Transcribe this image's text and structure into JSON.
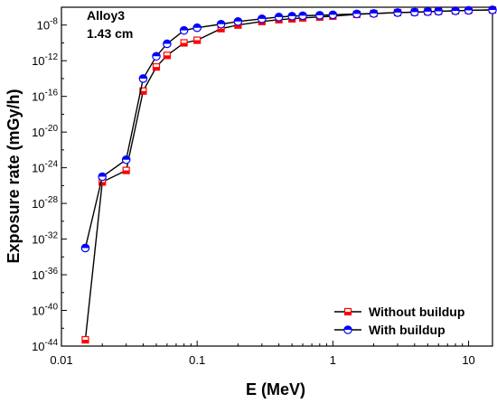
{
  "chart_data": {
    "type": "line",
    "xscale": "log",
    "yscale": "log",
    "xlabel": "E (MeV)",
    "ylabel": "Exposure rate (mGy/h)",
    "xlim": [
      0.01,
      15
    ],
    "ylim": [
      1e-44,
      1e-06
    ],
    "x_ticks": [
      {
        "value": 0.01,
        "label": "0.01"
      },
      {
        "value": 0.1,
        "label": "0.1"
      },
      {
        "value": 1,
        "label": "1"
      },
      {
        "value": 10,
        "label": "10"
      }
    ],
    "y_ticks": [
      {
        "exp": -8,
        "base": "10",
        "sup": "-8"
      },
      {
        "exp": -12,
        "base": "10",
        "sup": "-12"
      },
      {
        "exp": -16,
        "base": "10",
        "sup": "-16"
      },
      {
        "exp": -20,
        "base": "10",
        "sup": "-20"
      },
      {
        "exp": -24,
        "base": "10",
        "sup": "-24"
      },
      {
        "exp": -28,
        "base": "10",
        "sup": "-28"
      },
      {
        "exp": -32,
        "base": "10",
        "sup": "-32"
      },
      {
        "exp": -36,
        "base": "10",
        "sup": "-36"
      },
      {
        "exp": -40,
        "base": "10",
        "sup": "-40"
      },
      {
        "exp": -44,
        "base": "10",
        "sup": "-44"
      }
    ],
    "annotations": [
      "Alloy3",
      "1.43 cm"
    ],
    "legend_position": "bottom-right",
    "grid": false,
    "x": [
      0.015,
      0.02,
      0.03,
      0.04,
      0.05,
      0.06,
      0.08,
      0.1,
      0.15,
      0.2,
      0.3,
      0.4,
      0.5,
      0.6,
      0.8,
      1,
      1.5,
      2,
      3,
      4,
      5,
      6,
      8,
      10,
      15
    ],
    "series": [
      {
        "name": "Without buildup",
        "color": "#ff0000",
        "marker": "square-half",
        "log10_y": [
          -43.3,
          -25.6,
          -24.3,
          -15.4,
          -12.7,
          -11.4,
          -10.0,
          -9.7,
          -8.4,
          -8.0,
          -7.6,
          -7.4,
          -7.3,
          -7.2,
          -7.1,
          -7.0,
          -6.8,
          -6.7,
          -6.6,
          -6.55,
          -6.5,
          -6.45,
          -6.4,
          -6.35,
          -6.3
        ]
      },
      {
        "name": "With buildup",
        "color": "#0000ff",
        "marker": "circle-half",
        "log10_y": [
          -33.0,
          -25.0,
          -23.1,
          -14.0,
          -11.5,
          -10.1,
          -8.6,
          -8.3,
          -7.9,
          -7.6,
          -7.3,
          -7.1,
          -7.0,
          -6.95,
          -6.9,
          -6.85,
          -6.75,
          -6.7,
          -6.6,
          -6.55,
          -6.5,
          -6.45,
          -6.4,
          -6.35,
          -6.3
        ]
      }
    ]
  }
}
